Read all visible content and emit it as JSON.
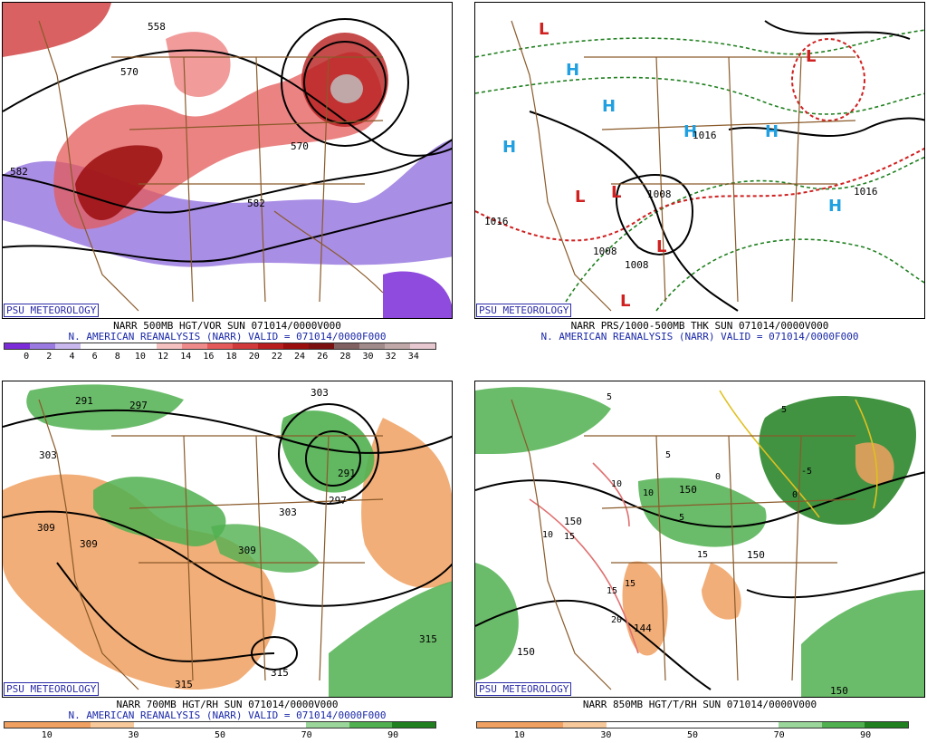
{
  "panels": [
    {
      "logo": "PSU METEOROLOGY",
      "title_line1": "NARR 500MB HGT/VOR SUN 071014/0000V000",
      "title_line2": "N. AMERICAN REANALYSIS (NARR) VALID = 071014/0000F000",
      "colorbar_colors": [
        "#7b2cd8",
        "#9a7ae0",
        "#c8b8ee",
        "#ffffff",
        "#ffffff",
        "#ffffff",
        "#f4c0c0",
        "#ee8a8a",
        "#e45a5a",
        "#d03a3a",
        "#b81e1e",
        "#9a0e0e",
        "#7a1010",
        "#806060",
        "#a08a8a",
        "#c0a8a8",
        "#e8c8d0"
      ],
      "colorbar_ticks": [
        "0",
        "2",
        "4",
        "6",
        "8",
        "10",
        "12",
        "14",
        "16",
        "18",
        "20",
        "22",
        "24",
        "26",
        "28",
        "30",
        "32",
        "34"
      ],
      "labels": [
        "570",
        "582",
        "558",
        "570",
        "582",
        "582"
      ]
    },
    {
      "logo": "PSU METEOROLOGY",
      "title_line1": "NARR PRS/1000-500MB THK SUN 071014/0000V000",
      "title_line2": "N. AMERICAN REANALYSIS (NARR) VALID = 071014/0000F000",
      "high_symbol": "H",
      "low_symbol": "L",
      "labels": [
        "1016",
        "1016",
        "1016",
        "1008",
        "1008",
        "1008",
        "1016",
        "1016"
      ]
    },
    {
      "logo": "PSU METEOROLOGY",
      "title_line1": "NARR 700MB HGT/RH SUN 071014/0000V000",
      "title_line2": "N. AMERICAN REANALYSIS (NARR) VALID = 071014/0000F000",
      "colorbar_colors": [
        "#f0a060",
        "#f0a060",
        "#f7c89a",
        "#ffffff",
        "#ffffff",
        "#ffffff",
        "#ffffff",
        "#9ad69a",
        "#50b050",
        "#208020"
      ],
      "colorbar_ticks": [
        "10",
        "30",
        "50",
        "70",
        "90"
      ],
      "labels": [
        "291",
        "297",
        "303",
        "309",
        "309",
        "303",
        "309",
        "315",
        "315",
        "315",
        "291",
        "297",
        "303"
      ]
    },
    {
      "logo": "PSU METEOROLOGY",
      "title_line1": "NARR 850MB HGT/T/RH SUN 071014/0000V000",
      "title_line2": "",
      "colorbar_colors": [
        "#f0a060",
        "#f0a060",
        "#f7c89a",
        "#ffffff",
        "#ffffff",
        "#ffffff",
        "#ffffff",
        "#9ad69a",
        "#50b050",
        "#208020"
      ],
      "colorbar_ticks": [
        "10",
        "30",
        "50",
        "70",
        "90"
      ],
      "labels": [
        "150",
        "150",
        "150",
        "150",
        "144",
        "150"
      ],
      "box_labels": [
        "5",
        "5",
        "-5",
        "0",
        "0",
        "10",
        "10",
        "10",
        "15",
        "15",
        "15",
        "15",
        "20",
        "5",
        "5"
      ]
    }
  ]
}
